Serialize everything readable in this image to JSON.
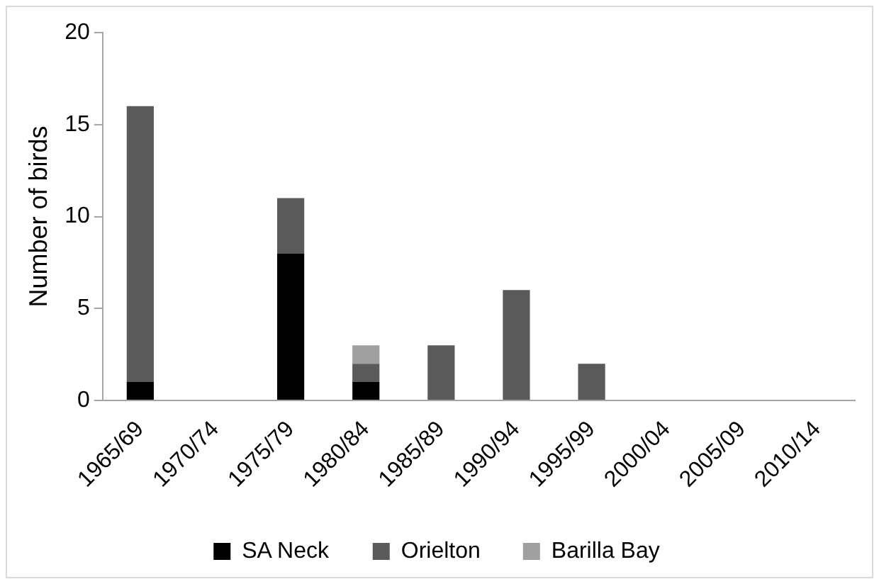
{
  "chart_data": {
    "type": "bar",
    "stacked": true,
    "ylabel": "Number of birds",
    "categories": [
      "1965/69",
      "1970/74",
      "1975/79",
      "1980/84",
      "1985/89",
      "1990/94",
      "1995/99",
      "2000/04",
      "2005/09",
      "2010/14"
    ],
    "series": [
      {
        "name": "SA Neck",
        "color": "#000000",
        "values": [
          1,
          0,
          8,
          1,
          0,
          0,
          0,
          0,
          0,
          0
        ]
      },
      {
        "name": "Orielton",
        "color": "#5a5a5a",
        "values": [
          15,
          0,
          3,
          1,
          3,
          6,
          2,
          0,
          0,
          0
        ]
      },
      {
        "name": "Barilla Bay",
        "color": "#a0a0a0",
        "values": [
          0,
          0,
          0,
          1,
          0,
          0,
          0,
          0,
          0,
          0
        ]
      }
    ],
    "ylim": [
      0,
      20
    ],
    "yticks": [
      0,
      5,
      10,
      15,
      20
    ],
    "grid": false,
    "legend": "bottom"
  }
}
